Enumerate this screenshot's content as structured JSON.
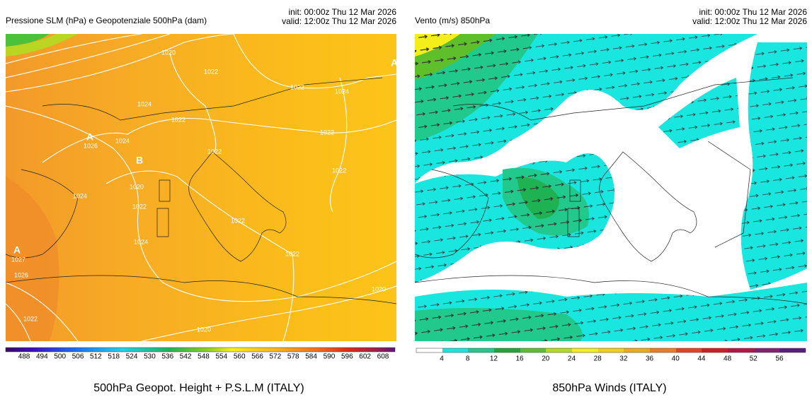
{
  "left_panel": {
    "title": "Pressione SLM (hPa) e Geopotenziale 500hPa (dam)",
    "init": "init: 00:00z Thu 12 Mar 2026",
    "valid": "valid: 12:00z Thu 12 Mar 2026",
    "map_labels": [
      "1020",
      "1022",
      "1022",
      "1024",
      "1024",
      "1022",
      "A",
      "1026",
      "1024",
      "1022",
      "1022",
      "B",
      "1022",
      "1020",
      "1024",
      "1022",
      "1022",
      "1024",
      "1022",
      "A",
      "1027",
      "1026",
      "1020",
      "1022",
      "1020",
      "A"
    ],
    "colorbar_ticks": [
      488,
      494,
      500,
      506,
      512,
      518,
      524,
      530,
      536,
      542,
      548,
      554,
      560,
      566,
      572,
      578,
      584,
      590,
      596,
      602,
      608
    ],
    "caption": "500hPa Geopot. Height + P.S.L.M (ITALY)"
  },
  "right_panel": {
    "title": "Vento (m/s) 850hPa",
    "init": "init: 00:00z Thu 12 Mar 2026",
    "valid": "valid: 12:00z Thu 12 Mar 2026",
    "colorbar_ticks": [
      4,
      8,
      12,
      16,
      20,
      24,
      28,
      32,
      36,
      40,
      44,
      48,
      52,
      56
    ],
    "caption": "850hPa Winds (ITALY)"
  }
}
